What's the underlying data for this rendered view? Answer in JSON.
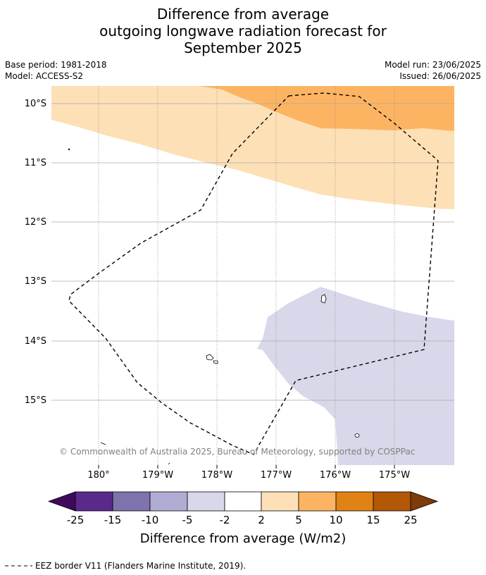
{
  "title": {
    "line1": "Difference from average",
    "line2": "outgoing longwave radiation forecast for",
    "line3": "September 2025"
  },
  "meta": {
    "base_period": "Base period: 1981-2018",
    "model": "Model: ACCESS-S2",
    "model_run": "Model run: 23/06/2025",
    "issued": "Issued: 26/06/2025"
  },
  "map": {
    "lat_labels": [
      "10°S",
      "11°S",
      "12°S",
      "13°S",
      "14°S",
      "15°S"
    ],
    "lon_labels": [
      "180°",
      "179°W",
      "178°W",
      "177°W",
      "176°W",
      "175°W"
    ],
    "copyright": "© Commonwealth of Australia 2025, Bureau of Meteorology, supported by COSPPac",
    "region_colors": {
      "strong_positive": "#fdb462",
      "weak_positive": "#fde0b6",
      "weak_negative": "#d8d8ea"
    }
  },
  "colorbar": {
    "label": "Difference from average (W/m2)",
    "ticks": [
      "-25",
      "-15",
      "-10",
      "-5",
      "-2",
      "2",
      "5",
      "10",
      "15",
      "25"
    ],
    "colors": [
      "#3f0a5e",
      "#5a2a8a",
      "#7f72ad",
      "#b1acd3",
      "#d8d8ea",
      "#ffffff",
      "#fde0b6",
      "#fdb462",
      "#e08214",
      "#b35806",
      "#7f3b08"
    ]
  },
  "footer": {
    "legend_text": "EEZ border V11 (Flanders Marine Institute, 2019)."
  }
}
